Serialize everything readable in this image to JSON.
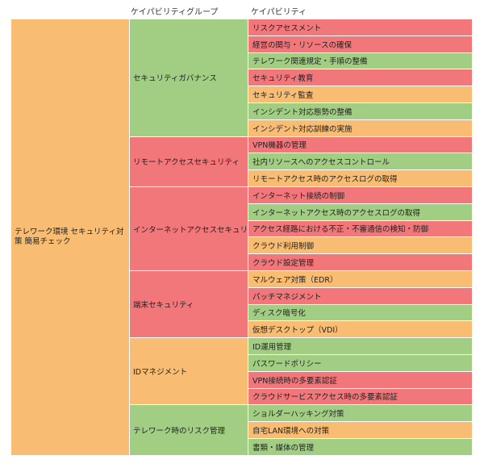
{
  "headers": {
    "group": "ケイパビリティグループ",
    "capability": "ケイパビリティ"
  },
  "colors": {
    "orange": "#f8bc72",
    "red": "#f2777a",
    "green": "#a2ce84"
  },
  "root": {
    "label": "テレワーク環境 セキュリティ対策 簡易チェック",
    "color": "orange"
  },
  "groups": [
    {
      "label": "セキュリティガバナンス",
      "color": "green",
      "items": [
        {
          "label": "リスクアセスメント",
          "color": "red"
        },
        {
          "label": "経営の関与・リソースの確保",
          "color": "red"
        },
        {
          "label": "テレワーク関連規定・手順の整備",
          "color": "green"
        },
        {
          "label": "セキュリティ教育",
          "color": "red"
        },
        {
          "label": "セキュリティ監査",
          "color": "orange"
        },
        {
          "label": "インシデント対応態勢の整備",
          "color": "green"
        },
        {
          "label": "インシデント対応訓練の実施",
          "color": "orange"
        }
      ]
    },
    {
      "label": "リモートアクセスセキュリティ",
      "color": "red",
      "items": [
        {
          "label": "VPN機器の管理",
          "color": "red"
        },
        {
          "label": "社内リソースへのアクセスコントロール",
          "color": "green"
        },
        {
          "label": "リモートアクセス時のアクセスログの取得",
          "color": "orange"
        }
      ]
    },
    {
      "label": "インターネットアクセスセキュリティ",
      "color": "red",
      "items": [
        {
          "label": "インターネット接続の制御",
          "color": "red"
        },
        {
          "label": "インターネットアクセス時のアクセスログの取得",
          "color": "green"
        },
        {
          "label": "アクセス経路における不正・不審通信の検知・防御",
          "color": "red"
        },
        {
          "label": "クラウド利用制御",
          "color": "orange"
        },
        {
          "label": "クラウド設定管理",
          "color": "red"
        }
      ]
    },
    {
      "label": "端末セキュリティ",
      "color": "red",
      "items": [
        {
          "label": "マルウェア対策（EDR）",
          "color": "orange"
        },
        {
          "label": "パッチマネジメント",
          "color": "red"
        },
        {
          "label": "ディスク暗号化",
          "color": "green"
        },
        {
          "label": "仮想デスクトップ（VDI）",
          "color": "orange"
        }
      ]
    },
    {
      "label": "IDマネジメント",
      "color": "orange",
      "items": [
        {
          "label": "ID運用管理",
          "color": "green"
        },
        {
          "label": "パスワードポリシー",
          "color": "green"
        },
        {
          "label": "VPN接続時の多要素認証",
          "color": "red"
        },
        {
          "label": "クラウドサービスアクセス時の多要素認証",
          "color": "red"
        }
      ]
    },
    {
      "label": "テレワーク時のリスク管理",
      "color": "green",
      "items": [
        {
          "label": "ショルダーハッキング対策",
          "color": "green"
        },
        {
          "label": "自宅LAN環境への対策",
          "color": "orange"
        },
        {
          "label": "書類・媒体の管理",
          "color": "green"
        }
      ]
    }
  ]
}
